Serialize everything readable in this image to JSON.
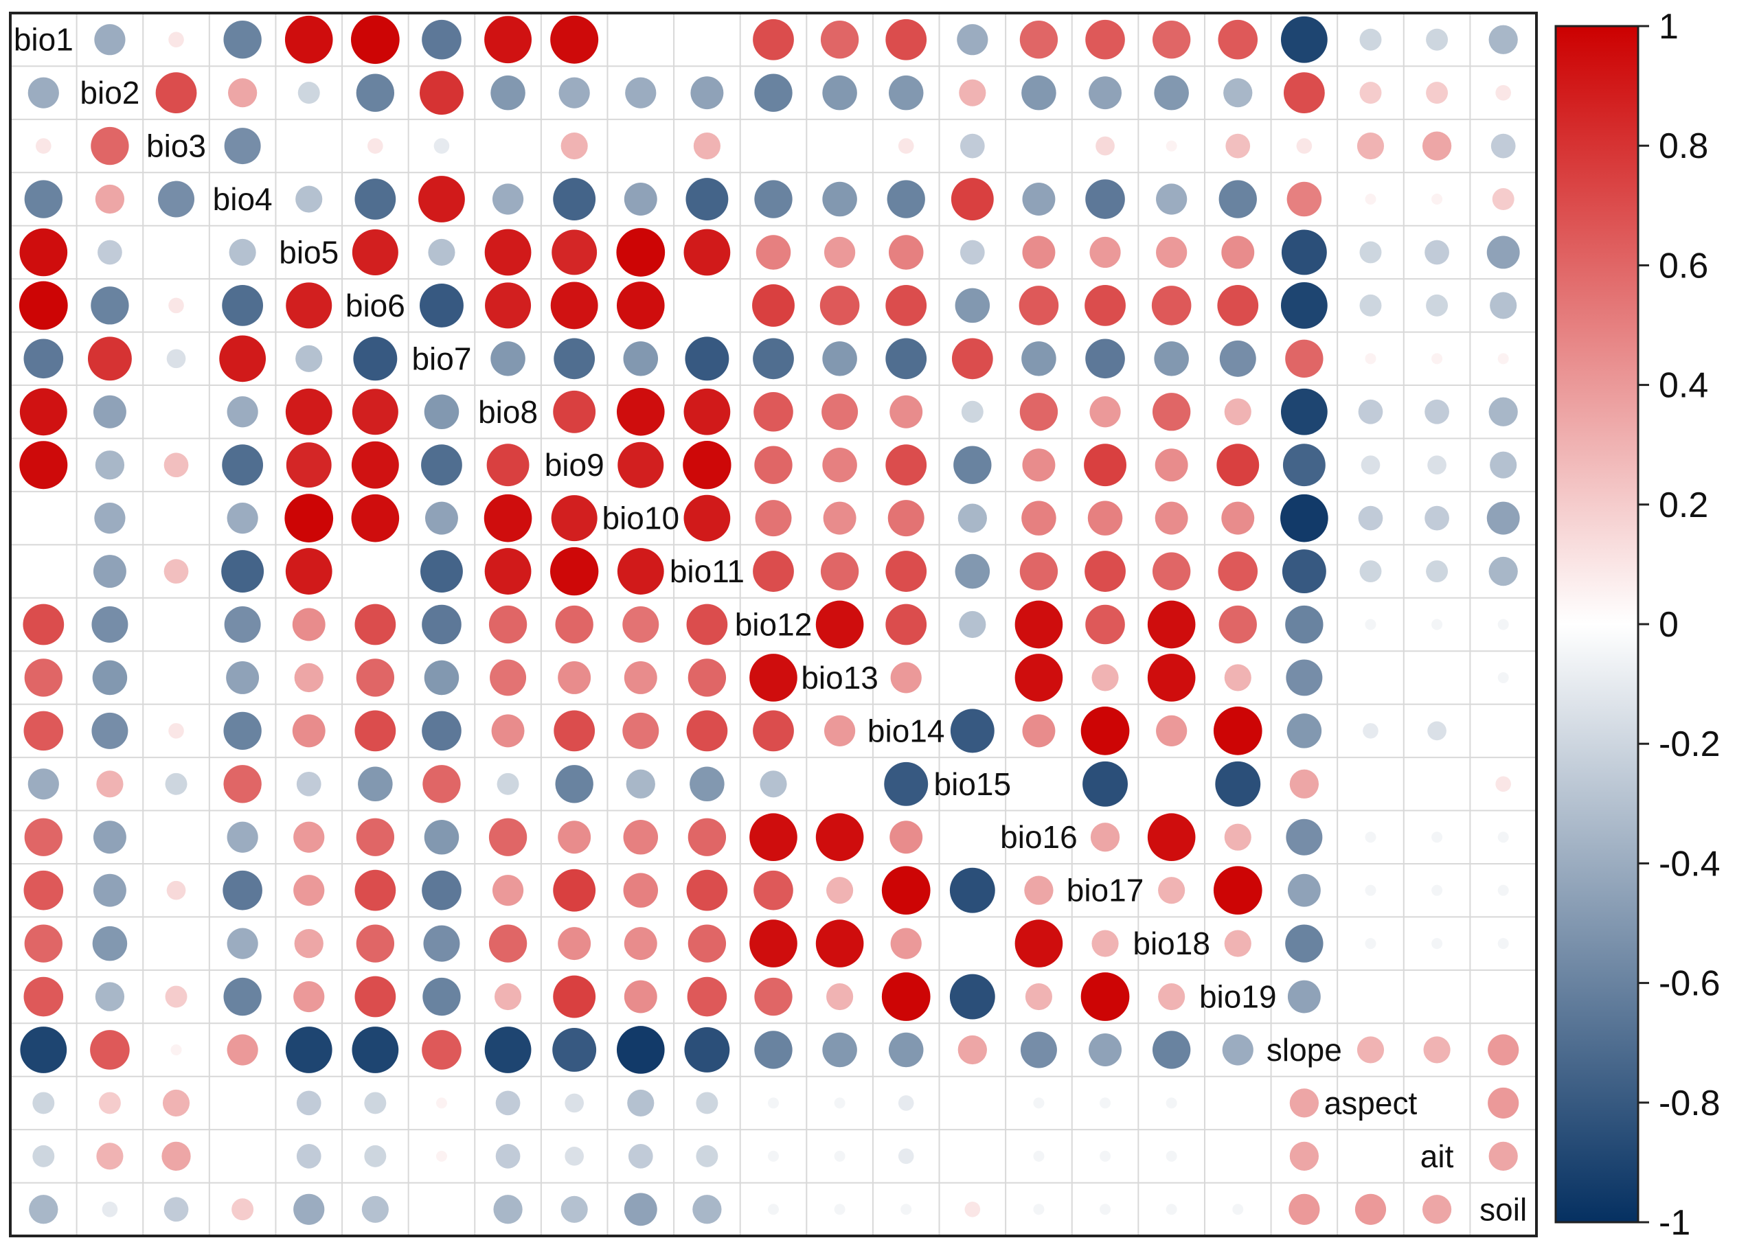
{
  "chart_data": {
    "type": "heatmap",
    "variables": [
      "bio1",
      "bio2",
      "bio3",
      "bio4",
      "bio5",
      "bio6",
      "bio7",
      "bio8",
      "bio9",
      "bio10",
      "bio11",
      "bio12",
      "bio13",
      "bio14",
      "bio15",
      "bio16",
      "bio17",
      "bio18",
      "bio19",
      "slope",
      "aspect",
      "ait",
      "soil"
    ],
    "matrix": [
      [
        1,
        -0.4,
        0.1,
        -0.6,
        0.95,
        0.98,
        -0.65,
        0.93,
        0.96,
        0,
        0,
        0.7,
        0.6,
        0.7,
        -0.4,
        0.6,
        0.65,
        0.6,
        0.65,
        -0.9,
        -0.2,
        -0.2,
        -0.35
      ],
      [
        -0.4,
        1,
        0.7,
        0.35,
        -0.2,
        -0.6,
        0.8,
        -0.5,
        -0.4,
        -0.4,
        -0.45,
        -0.6,
        -0.5,
        -0.5,
        0.3,
        -0.5,
        -0.45,
        -0.5,
        -0.35,
        0.7,
        0.2,
        0.2,
        0.1
      ],
      [
        0.1,
        0.6,
        1,
        -0.55,
        0,
        0.1,
        -0.1,
        0,
        0.3,
        0,
        0.3,
        0,
        0,
        0.1,
        -0.25,
        0,
        0.15,
        0.05,
        0.25,
        0.1,
        0.3,
        0.35,
        -0.25
      ],
      [
        -0.6,
        0.35,
        -0.55,
        1,
        -0.3,
        -0.7,
        0.9,
        -0.4,
        -0.75,
        -0.45,
        -0.75,
        -0.6,
        -0.5,
        -0.6,
        0.75,
        -0.45,
        -0.65,
        -0.4,
        -0.6,
        0.5,
        0.05,
        0.05,
        0.2
      ],
      [
        0.95,
        -0.25,
        0,
        -0.3,
        1,
        0.88,
        -0.3,
        0.9,
        0.85,
        0.98,
        0.9,
        0.5,
        0.4,
        0.5,
        -0.25,
        0.45,
        0.4,
        0.4,
        0.45,
        -0.85,
        -0.2,
        -0.25,
        -0.45
      ],
      [
        0.98,
        -0.6,
        0.1,
        -0.7,
        0.88,
        1,
        -0.8,
        0.88,
        0.93,
        0.95,
        0,
        0.75,
        0.65,
        0.7,
        -0.5,
        0.65,
        0.7,
        0.65,
        0.7,
        -0.9,
        -0.2,
        -0.2,
        -0.3
      ],
      [
        -0.65,
        0.8,
        -0.15,
        0.9,
        -0.3,
        -0.8,
        1,
        -0.5,
        -0.7,
        -0.5,
        -0.8,
        -0.7,
        -0.5,
        -0.7,
        0.7,
        -0.5,
        -0.65,
        -0.5,
        -0.55,
        0.6,
        0.05,
        0.05,
        0.05
      ],
      [
        0.93,
        -0.45,
        0,
        -0.4,
        0.9,
        0.88,
        -0.5,
        1,
        0.75,
        0.95,
        0.9,
        0.65,
        0.55,
        0.45,
        -0.2,
        0.6,
        0.4,
        0.6,
        0.3,
        -0.9,
        -0.25,
        -0.25,
        -0.35
      ],
      [
        0.96,
        -0.35,
        0.25,
        -0.7,
        0.85,
        0.93,
        -0.7,
        0.75,
        1,
        0.88,
        0.97,
        0.6,
        0.5,
        0.7,
        -0.6,
        0.45,
        0.75,
        0.45,
        0.75,
        -0.75,
        -0.15,
        -0.15,
        -0.3
      ],
      [
        0,
        -0.4,
        0,
        -0.4,
        0.98,
        0.95,
        -0.45,
        0.95,
        0.88,
        1,
        0.9,
        0.55,
        0.45,
        0.55,
        -0.35,
        0.5,
        0.5,
        0.45,
        0.45,
        -0.95,
        -0.25,
        -0.25,
        -0.45
      ],
      [
        0,
        -0.45,
        0.25,
        -0.75,
        0.9,
        0,
        -0.75,
        0.9,
        0.97,
        0.9,
        1,
        0.7,
        0.6,
        0.7,
        -0.5,
        0.6,
        0.7,
        0.6,
        0.65,
        -0.8,
        -0.2,
        -0.2,
        -0.35
      ],
      [
        0.7,
        -0.55,
        0,
        -0.55,
        0.45,
        0.7,
        -0.65,
        0.6,
        0.6,
        0.55,
        0.7,
        1,
        0.95,
        0.7,
        -0.3,
        0.95,
        0.65,
        0.95,
        0.6,
        -0.6,
        -0.05,
        -0.05,
        -0.05
      ],
      [
        0.6,
        -0.5,
        0,
        -0.45,
        0.35,
        0.6,
        -0.5,
        0.55,
        0.45,
        0.45,
        0.6,
        0.95,
        1,
        0.4,
        0,
        0.95,
        0.3,
        0.95,
        0.3,
        -0.55,
        0,
        0,
        -0.05
      ],
      [
        0.65,
        -0.55,
        0.1,
        -0.6,
        0.45,
        0.7,
        -0.65,
        0.45,
        0.7,
        0.55,
        0.7,
        0.7,
        0.4,
        1,
        -0.8,
        0.45,
        0.98,
        0.4,
        0.98,
        -0.5,
        -0.1,
        -0.15,
        0
      ],
      [
        -0.4,
        0.3,
        -0.2,
        0.6,
        -0.25,
        -0.5,
        0.6,
        -0.2,
        -0.6,
        -0.35,
        -0.5,
        -0.3,
        0,
        -0.8,
        1,
        0,
        -0.85,
        0,
        -0.85,
        0.35,
        0,
        0,
        0.1
      ],
      [
        0.6,
        -0.45,
        0,
        -0.4,
        0.4,
        0.6,
        -0.5,
        0.6,
        0.45,
        0.5,
        0.6,
        0.95,
        0.95,
        0.45,
        0,
        1,
        0.35,
        0.95,
        0.3,
        -0.55,
        -0.05,
        -0.05,
        -0.05
      ],
      [
        0.65,
        -0.45,
        0.15,
        -0.65,
        0.4,
        0.7,
        -0.65,
        0.4,
        0.75,
        0.5,
        0.7,
        0.65,
        0.3,
        0.98,
        -0.85,
        0.35,
        1,
        0.3,
        0.98,
        -0.45,
        -0.05,
        -0.05,
        -0.05
      ],
      [
        0.6,
        -0.5,
        0,
        -0.4,
        0.35,
        0.6,
        -0.55,
        0.6,
        0.45,
        0.45,
        0.6,
        0.95,
        0.95,
        0.4,
        0,
        0.95,
        0.3,
        1,
        0.3,
        -0.6,
        -0.05,
        -0.05,
        -0.05
      ],
      [
        0.65,
        -0.35,
        0.2,
        -0.6,
        0.4,
        0.7,
        -0.6,
        0.3,
        0.75,
        0.45,
        0.65,
        0.6,
        0.3,
        0.98,
        -0.85,
        0.3,
        0.98,
        0.3,
        1,
        -0.45,
        0,
        0,
        0
      ],
      [
        -0.9,
        0.65,
        0.05,
        0.4,
        -0.9,
        -0.9,
        0.65,
        -0.9,
        -0.8,
        -0.95,
        -0.85,
        -0.6,
        -0.5,
        -0.5,
        0.35,
        -0.55,
        -0.45,
        -0.6,
        -0.4,
        1,
        0.3,
        0.3,
        0.4
      ],
      [
        -0.2,
        0.2,
        0.3,
        0,
        -0.25,
        -0.2,
        0.05,
        -0.25,
        -0.15,
        -0.3,
        -0.2,
        -0.05,
        -0.05,
        -0.1,
        0,
        -0.05,
        -0.05,
        -0.05,
        0,
        0.35,
        1,
        0,
        0.4
      ],
      [
        -0.2,
        0.3,
        0.35,
        0,
        -0.25,
        -0.2,
        0.05,
        -0.25,
        -0.15,
        -0.25,
        -0.2,
        -0.05,
        -0.05,
        -0.1,
        0,
        -0.05,
        -0.05,
        -0.05,
        0,
        0.35,
        0,
        1,
        0.35
      ],
      [
        -0.35,
        -0.1,
        -0.25,
        0.2,
        -0.4,
        -0.3,
        0,
        -0.35,
        -0.3,
        -0.45,
        -0.35,
        -0.05,
        -0.05,
        -0.05,
        0.1,
        -0.05,
        -0.05,
        -0.05,
        -0.05,
        0.4,
        0.4,
        0.35,
        1
      ]
    ],
    "colorbar": {
      "range": [
        -1,
        1
      ],
      "ticks": [
        "1",
        "0.8",
        "0.6",
        "0.4",
        "0.2",
        "0",
        "-0.2",
        "-0.4",
        "-0.6",
        "-0.8",
        "-1"
      ],
      "colors": {
        "negative": "#053061",
        "neutral": "#ffffff",
        "positive": "#cc0000"
      }
    },
    "grid": true
  }
}
